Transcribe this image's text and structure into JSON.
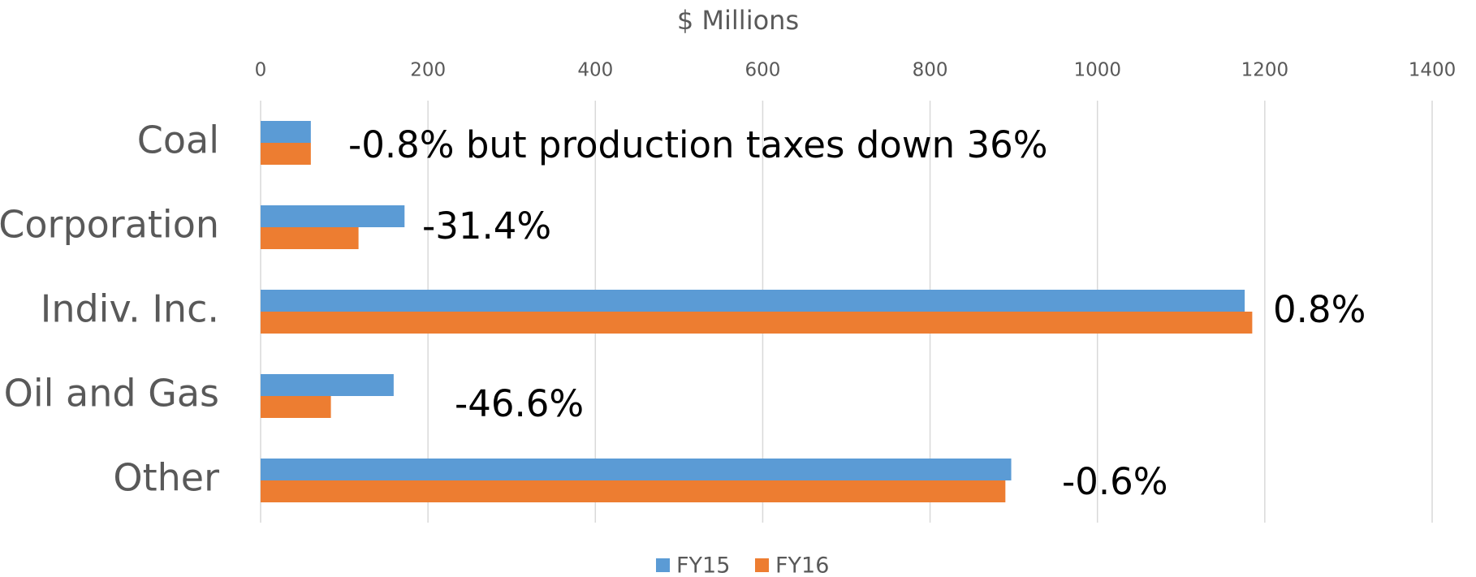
{
  "chart_data": {
    "type": "hbar",
    "title": "$ Millions",
    "categories": [
      "Coal",
      "Corporation",
      "Indiv. Inc.",
      "Oil and Gas",
      "Other"
    ],
    "series": [
      {
        "name": "FY15",
        "color": "#5b9bd5",
        "values": [
          60,
          172,
          1176,
          159,
          897
        ]
      },
      {
        "name": "FY16",
        "color": "#ed7d31",
        "values": [
          60,
          117,
          1185,
          84,
          890
        ]
      }
    ],
    "annotations": [
      "-0.8% but production taxes down 36%",
      "-31.4%",
      "0.8%",
      "-46.6%",
      "-0.6%"
    ],
    "xlim": [
      0,
      1400
    ],
    "xticks": [
      0,
      200,
      400,
      600,
      800,
      1000,
      1200,
      1400
    ],
    "grid": true,
    "legend": "bottom"
  }
}
